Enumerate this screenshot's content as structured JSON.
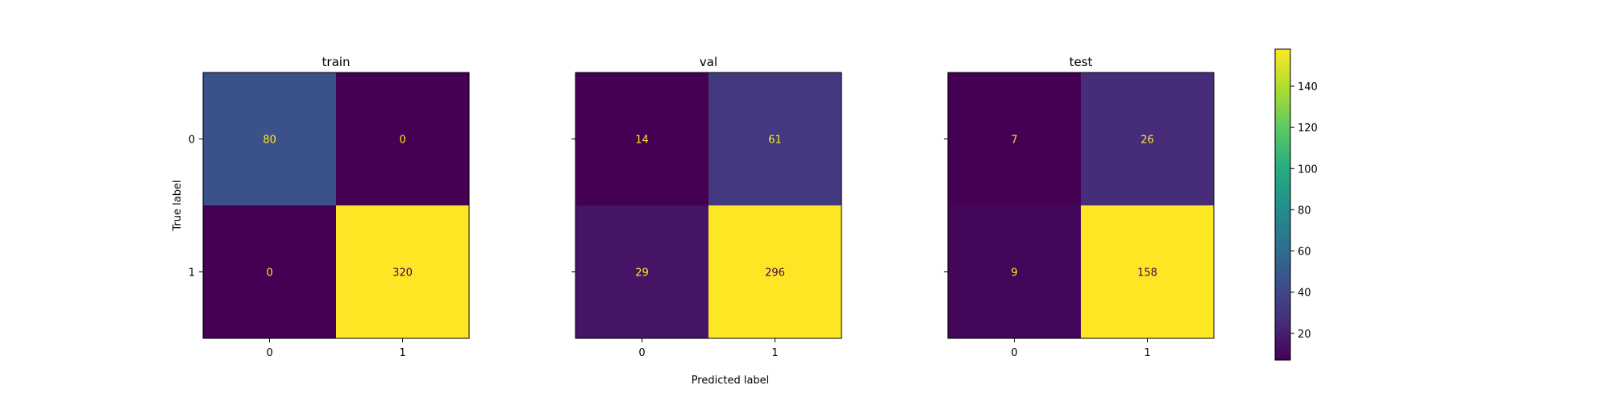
{
  "figure": {
    "xlabel": "Predicted label",
    "ylabel": "True label"
  },
  "chart_data": [
    {
      "type": "heatmap",
      "title": "train",
      "rows": [
        "0",
        "1"
      ],
      "cols": [
        "0",
        "1"
      ],
      "values": [
        [
          80,
          0
        ],
        [
          0,
          320
        ]
      ]
    },
    {
      "type": "heatmap",
      "title": "val",
      "rows": [
        "0",
        "1"
      ],
      "cols": [
        "0",
        "1"
      ],
      "values": [
        [
          14,
          61
        ],
        [
          29,
          296
        ]
      ]
    },
    {
      "type": "heatmap",
      "title": "test",
      "rows": [
        "0",
        "1"
      ],
      "cols": [
        "0",
        "1"
      ],
      "values": [
        [
          7,
          26
        ],
        [
          9,
          158
        ]
      ]
    }
  ],
  "colorbar": {
    "colormap": "viridis",
    "range": [
      7,
      158
    ],
    "ticks": [
      "20",
      "40",
      "60",
      "80",
      "100",
      "120",
      "140"
    ]
  },
  "colors": {
    "dark_text": "#440154",
    "light_text": "#fde725"
  }
}
